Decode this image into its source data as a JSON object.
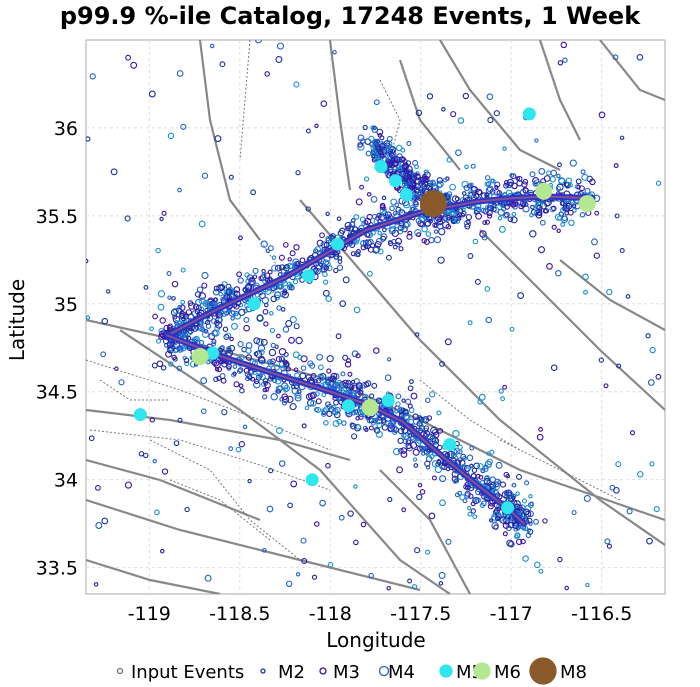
{
  "chart_data": {
    "type": "scatter",
    "title": "p99.9 %-ile Catalog, 17248 Events, 1 Week",
    "xlabel": "Longitude",
    "ylabel": "Latitude",
    "xlim": [
      -119.35,
      -116.15
    ],
    "ylim": [
      33.35,
      36.5
    ],
    "xticks": [
      -119,
      -118.5,
      -118,
      -117.5,
      -117,
      -116.5
    ],
    "xtick_labels": [
      "-119",
      "-118.5",
      "-118",
      "-117.5",
      "-117",
      "-116.5"
    ],
    "yticks": [
      33.5,
      34,
      34.5,
      35,
      35.5,
      36
    ],
    "ytick_labels": [
      "33.5",
      "34",
      "34.5",
      "35",
      "35.5",
      "36"
    ],
    "grid": true,
    "legend_position": "bottom",
    "legend": [
      "Input Events",
      "M2",
      "M3",
      "M4",
      "M5",
      "M6",
      "M8"
    ],
    "fault_trace": {
      "lon": [
        -118.9,
        -118.7,
        -118.5,
        -118.25,
        -118.0,
        -117.8,
        -117.5,
        -117.2,
        -117.0,
        -116.8,
        -116.55
      ],
      "lat": [
        34.82,
        34.93,
        35.03,
        35.15,
        35.3,
        35.42,
        35.52,
        35.58,
        35.6,
        35.61,
        35.6
      ]
    },
    "fault_trace_south": {
      "lon": [
        -118.9,
        -118.6,
        -118.3,
        -118.0,
        -117.8,
        -117.6,
        -117.4,
        -117.2,
        -117.0,
        -116.93
      ],
      "lat": [
        34.82,
        34.7,
        34.6,
        34.5,
        34.43,
        34.33,
        34.15,
        33.98,
        33.82,
        33.75
      ]
    },
    "series": [
      {
        "name": "M5",
        "points": [
          {
            "x": -118.42,
            "y": 35.0
          },
          {
            "x": -118.12,
            "y": 35.16
          },
          {
            "x": -117.96,
            "y": 35.34
          },
          {
            "x": -117.72,
            "y": 35.78
          },
          {
            "x": -117.64,
            "y": 35.7
          },
          {
            "x": -117.58,
            "y": 35.62
          },
          {
            "x": -117.9,
            "y": 34.42
          },
          {
            "x": -117.68,
            "y": 34.45
          },
          {
            "x": -117.34,
            "y": 34.2
          },
          {
            "x": -117.02,
            "y": 33.84
          },
          {
            "x": -118.65,
            "y": 34.72
          },
          {
            "x": -118.1,
            "y": 34.0
          },
          {
            "x": -119.05,
            "y": 34.37
          },
          {
            "x": -116.9,
            "y": 36.08
          }
        ]
      },
      {
        "name": "M6",
        "points": [
          {
            "x": -118.72,
            "y": 34.7
          },
          {
            "x": -117.78,
            "y": 34.41
          },
          {
            "x": -116.82,
            "y": 35.64
          },
          {
            "x": -116.58,
            "y": 35.57
          }
        ]
      },
      {
        "name": "M8",
        "points": [
          {
            "x": -117.43,
            "y": 35.57
          }
        ]
      }
    ]
  }
}
